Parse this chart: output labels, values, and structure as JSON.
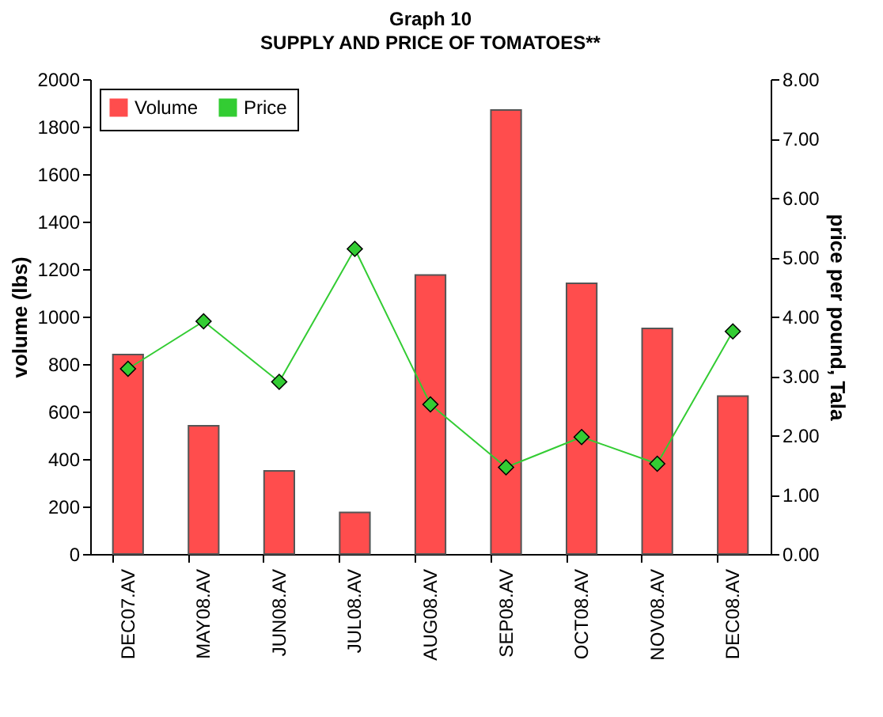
{
  "chart_data": {
    "type": "bar",
    "title": "Graph 10",
    "subtitle": "SUPPLY AND PRICE OF TOMATOES**",
    "ylabel": "volume (lbs)",
    "y2label": "price per pound, Tala",
    "categories": [
      "DEC07.AV",
      "MAY08.AV",
      "JUN08.AV",
      "JUL08.AV",
      "AUG08.AV",
      "SEP08.AV",
      "OCT08.AV",
      "NOV08.AV",
      "DEC08.AV"
    ],
    "series": [
      {
        "name": "Volume",
        "color": "#ff4d4d",
        "values": [
          840,
          540,
          350,
          175,
          1175,
          1870,
          1140,
          950,
          665
        ]
      },
      {
        "name": "Price",
        "type": "line",
        "axis": "y2",
        "color": "#33cc33",
        "values": [
          3.12,
          3.92,
          2.9,
          5.14,
          2.52,
          1.46,
          1.97,
          1.52,
          3.75
        ]
      }
    ],
    "ylim": [
      0,
      2000
    ],
    "yticks": [
      0,
      200,
      400,
      600,
      800,
      1000,
      1200,
      1400,
      1600,
      1800,
      2000
    ],
    "y2lim": [
      0,
      8
    ],
    "y2ticks": [
      {
        "value": 0,
        "label": "0.00"
      },
      {
        "value": 1,
        "label": "1.00"
      },
      {
        "value": 2,
        "label": "2.00"
      },
      {
        "value": 3,
        "label": "3.00"
      },
      {
        "value": 4,
        "label": "4.00"
      },
      {
        "value": 5,
        "label": "5.00"
      },
      {
        "value": 6,
        "label": "6.00"
      },
      {
        "value": 7,
        "label": "7.00"
      },
      {
        "value": 8,
        "label": "8.00"
      }
    ],
    "marker": "diamond",
    "legend": "top left",
    "grid": false
  }
}
